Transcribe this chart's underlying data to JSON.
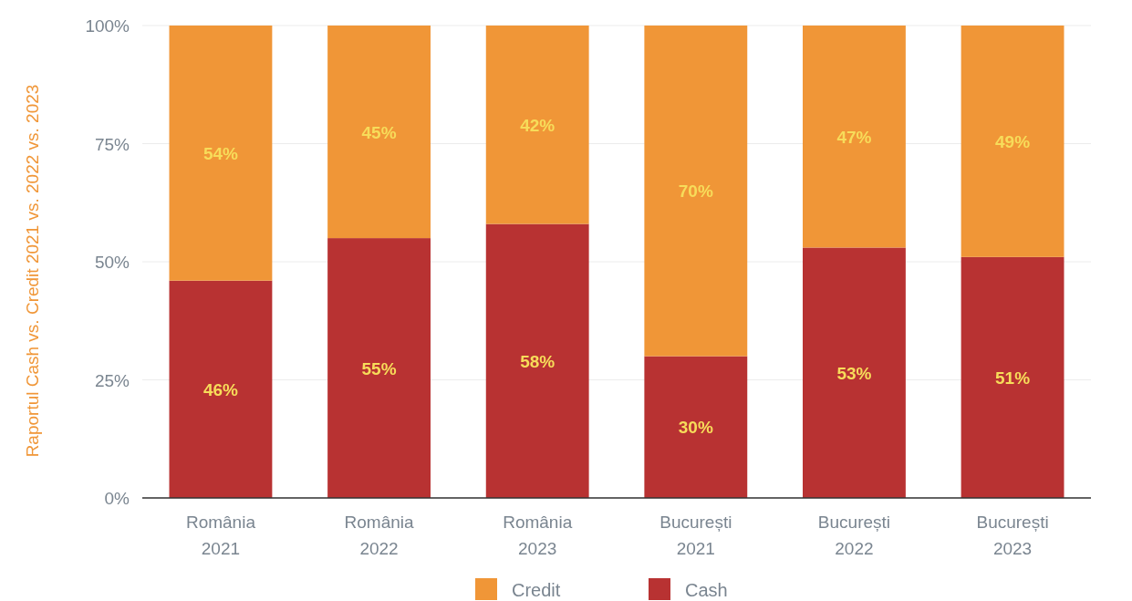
{
  "chart_data": {
    "type": "bar",
    "stacked": true,
    "ylabel": "Raportul Cash vs. Credit 2021 vs. 2022 vs. 2023",
    "categories": [
      "România 2021",
      "România 2022",
      "România 2023",
      "București 2021",
      "București 2022",
      "București 2023"
    ],
    "series": [
      {
        "name": "Cash",
        "color": "#b83232",
        "values": [
          46,
          55,
          58,
          30,
          53,
          51
        ],
        "value_labels": [
          "46%",
          "55%",
          "58%",
          "30%",
          "53%",
          "51%"
        ]
      },
      {
        "name": "Credit",
        "color": "#f09637",
        "values": [
          54,
          45,
          42,
          70,
          47,
          49
        ],
        "value_labels": [
          "54%",
          "45%",
          "42%",
          "70%",
          "47%",
          "49%"
        ]
      }
    ],
    "ylim": [
      0,
      100
    ],
    "yticks": [
      {
        "value": 0,
        "label": "0%"
      },
      {
        "value": 25,
        "label": "25%"
      },
      {
        "value": 50,
        "label": "50%"
      },
      {
        "value": 75,
        "label": "75%"
      },
      {
        "value": 100,
        "label": "100%"
      }
    ],
    "grid": "y",
    "legend": "bottom"
  }
}
